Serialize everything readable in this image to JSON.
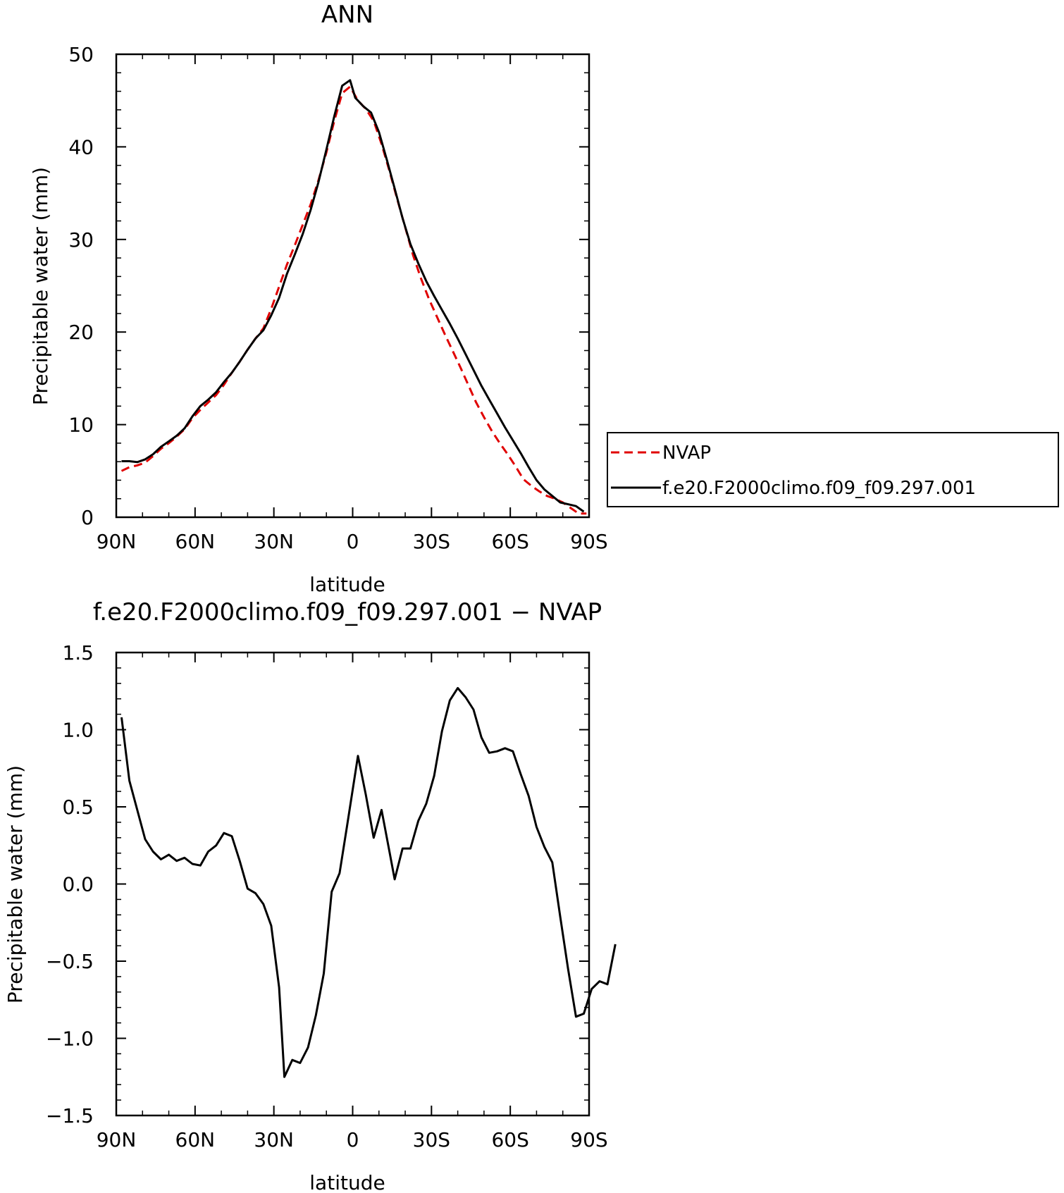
{
  "chart_data": [
    {
      "type": "line",
      "title": "ANN",
      "xlabel": "latitude",
      "ylabel": "Precipitable water (mm)",
      "xlim": [
        90,
        -90
      ],
      "ylim": [
        0,
        50
      ],
      "xticks": [
        {
          "value": 90,
          "label": "90N"
        },
        {
          "value": 60,
          "label": "60N"
        },
        {
          "value": 30,
          "label": "30N"
        },
        {
          "value": 0,
          "label": "0"
        },
        {
          "value": -30,
          "label": "30S"
        },
        {
          "value": -60,
          "label": "60S"
        },
        {
          "value": -90,
          "label": "90S"
        }
      ],
      "yticks": [
        {
          "value": 0,
          "label": "0"
        },
        {
          "value": 10,
          "label": "10"
        },
        {
          "value": 20,
          "label": "20"
        },
        {
          "value": 30,
          "label": "30"
        },
        {
          "value": 40,
          "label": "40"
        },
        {
          "value": 50,
          "label": "50"
        }
      ],
      "legend": {
        "placement": "right"
      },
      "series": [
        {
          "name": "NVAP",
          "color": "#e00000",
          "dash": true,
          "points": [
            [
              88,
              5.0
            ],
            [
              85,
              5.4
            ],
            [
              82,
              5.6
            ],
            [
              79,
              5.9
            ],
            [
              76,
              6.6
            ],
            [
              73,
              7.4
            ],
            [
              70,
              8.0
            ],
            [
              67,
              8.7
            ],
            [
              64,
              9.5
            ],
            [
              61,
              10.7
            ],
            [
              58,
              11.6
            ],
            [
              55,
              12.4
            ],
            [
              52,
              13.2
            ],
            [
              49,
              14.3
            ],
            [
              46,
              15.6
            ],
            [
              43,
              16.8
            ],
            [
              40,
              18.1
            ],
            [
              37,
              19.3
            ],
            [
              34,
              20.4
            ],
            [
              31,
              22.5
            ],
            [
              28,
              24.9
            ],
            [
              25,
              27.3
            ],
            [
              22,
              29.4
            ],
            [
              19,
              31.6
            ],
            [
              16,
              33.8
            ],
            [
              13,
              36.4
            ],
            [
              10,
              39.4
            ],
            [
              7,
              42.8
            ],
            [
              4,
              45.8
            ],
            [
              1,
              46.5
            ],
            [
              -2,
              45.0
            ],
            [
              -5,
              44.1
            ],
            [
              -8,
              42.8
            ],
            [
              -11,
              40.3
            ],
            [
              -14,
              37.4
            ],
            [
              -17,
              34.3
            ],
            [
              -20,
              31.3
            ],
            [
              -23,
              28.3
            ],
            [
              -26,
              25.8
            ],
            [
              -29,
              23.6
            ],
            [
              -32,
              21.7
            ],
            [
              -35,
              19.8
            ],
            [
              -38,
              18.0
            ],
            [
              -41,
              16.2
            ],
            [
              -44,
              14.3
            ],
            [
              -47,
              12.4
            ],
            [
              -50,
              10.8
            ],
            [
              -53,
              9.3
            ],
            [
              -56,
              8.0
            ],
            [
              -59,
              6.8
            ],
            [
              -62,
              5.5
            ],
            [
              -65,
              4.1
            ],
            [
              -68,
              3.4
            ],
            [
              -71,
              2.8
            ],
            [
              -74,
              2.3
            ],
            [
              -77,
              2.0
            ],
            [
              -80,
              1.6
            ],
            [
              -83,
              1.0
            ],
            [
              -86,
              0.4
            ],
            [
              -89,
              0.4
            ]
          ]
        },
        {
          "name": "f.e20.F2000climo.f09_f09.297.001",
          "color": "#000000",
          "dash": false,
          "points": [
            [
              88,
              6.05
            ],
            [
              85,
              6.05
            ],
            [
              82,
              5.95
            ],
            [
              79,
              6.25
            ],
            [
              76,
              6.8
            ],
            [
              73,
              7.6
            ],
            [
              70,
              8.2
            ],
            [
              67,
              8.8
            ],
            [
              64,
              9.6
            ],
            [
              61,
              10.9
            ],
            [
              58,
              12.0
            ],
            [
              55,
              12.7
            ],
            [
              52,
              13.5
            ],
            [
              49,
              14.6
            ],
            [
              46,
              15.6
            ],
            [
              43,
              16.8
            ],
            [
              40,
              18.1
            ],
            [
              37,
              19.3
            ],
            [
              34,
              20.2
            ],
            [
              31,
              21.8
            ],
            [
              28,
              23.7
            ],
            [
              25,
              26.3
            ],
            [
              22,
              28.4
            ],
            [
              19,
              30.6
            ],
            [
              16,
              33.2
            ],
            [
              13,
              36.2
            ],
            [
              10,
              39.7
            ],
            [
              7,
              43.3
            ],
            [
              4,
              46.6
            ],
            [
              1,
              47.2
            ],
            [
              -1,
              45.3
            ],
            [
              -4,
              44.4
            ],
            [
              -7,
              43.7
            ],
            [
              -10,
              41.6
            ],
            [
              -13,
              38.6
            ],
            [
              -16,
              35.5
            ],
            [
              -19,
              32.3
            ],
            [
              -22,
              29.5
            ],
            [
              -25,
              27.4
            ],
            [
              -28,
              25.5
            ],
            [
              -31,
              23.9
            ],
            [
              -34,
              22.4
            ],
            [
              -37,
              20.9
            ],
            [
              -40,
              19.3
            ],
            [
              -43,
              17.6
            ],
            [
              -46,
              15.9
            ],
            [
              -49,
              14.2
            ],
            [
              -52,
              12.7
            ],
            [
              -55,
              11.2
            ],
            [
              -58,
              9.7
            ],
            [
              -61,
              8.3
            ],
            [
              -64,
              6.9
            ],
            [
              -67,
              5.4
            ],
            [
              -70,
              4.0
            ],
            [
              -73,
              3.0
            ],
            [
              -76,
              2.3
            ],
            [
              -79,
              1.6
            ],
            [
              -82,
              1.4
            ],
            [
              -85,
              1.2
            ],
            [
              -88,
              0.6
            ]
          ]
        }
      ]
    },
    {
      "type": "line",
      "title": "f.e20.F2000climo.f09_f09.297.001 − NVAP",
      "xlabel": "latitude",
      "ylabel": "Precipitable water (mm)",
      "xlim": [
        90,
        -90
      ],
      "ylim": [
        -1.5,
        1.5
      ],
      "xticks": [
        {
          "value": 90,
          "label": "90N"
        },
        {
          "value": 60,
          "label": "60N"
        },
        {
          "value": 30,
          "label": "30N"
        },
        {
          "value": 0,
          "label": "0"
        },
        {
          "value": -30,
          "label": "30S"
        },
        {
          "value": -60,
          "label": "60S"
        },
        {
          "value": -90,
          "label": "90S"
        }
      ],
      "yticks": [
        {
          "value": -1.5,
          "label": "−1.5"
        },
        {
          "value": -1.0,
          "label": "−1.0"
        },
        {
          "value": -0.5,
          "label": "−0.5"
        },
        {
          "value": 0.0,
          "label": "0.0"
        },
        {
          "value": 0.5,
          "label": "0.5"
        },
        {
          "value": 1.0,
          "label": "1.0"
        },
        {
          "value": 1.5,
          "label": "1.5"
        }
      ],
      "series": [
        {
          "color": "#000000",
          "dash": false,
          "points": [
            [
              88,
              1.08
            ],
            [
              85,
              0.67
            ],
            [
              82,
              0.48
            ],
            [
              79,
              0.29
            ],
            [
              76,
              0.21
            ],
            [
              73,
              0.16
            ],
            [
              70,
              0.19
            ],
            [
              67,
              0.15
            ],
            [
              64,
              0.17
            ],
            [
              61,
              0.13
            ],
            [
              58,
              0.12
            ],
            [
              55,
              0.21
            ],
            [
              52,
              0.25
            ],
            [
              49,
              0.33
            ],
            [
              46,
              0.31
            ],
            [
              43,
              0.15
            ],
            [
              40,
              -0.03
            ],
            [
              37,
              -0.06
            ],
            [
              34,
              -0.13
            ],
            [
              31,
              -0.27
            ],
            [
              28,
              -0.67
            ],
            [
              26,
              -1.25
            ],
            [
              23,
              -1.14
            ],
            [
              20,
              -1.16
            ],
            [
              17,
              -1.06
            ],
            [
              14,
              -0.85
            ],
            [
              11,
              -0.58
            ],
            [
              8,
              -0.05
            ],
            [
              5,
              0.07
            ],
            [
              2,
              0.39
            ],
            [
              -2,
              0.83
            ],
            [
              -5,
              0.58
            ],
            [
              -8,
              0.3
            ],
            [
              -11,
              0.48
            ],
            [
              -14,
              0.21
            ],
            [
              -16,
              0.03
            ],
            [
              -19,
              0.23
            ],
            [
              -22,
              0.23
            ],
            [
              -25,
              0.41
            ],
            [
              -28,
              0.52
            ],
            [
              -31,
              0.7
            ],
            [
              -34,
              0.99
            ],
            [
              -37,
              1.19
            ],
            [
              -40,
              1.27
            ],
            [
              -43,
              1.21
            ],
            [
              -46,
              1.13
            ],
            [
              -49,
              0.95
            ],
            [
              -52,
              0.85
            ],
            [
              -55,
              0.86
            ],
            [
              -58,
              0.88
            ],
            [
              -61,
              0.86
            ],
            [
              -64,
              0.71
            ],
            [
              -67,
              0.57
            ],
            [
              -70,
              0.37
            ],
            [
              -73,
              0.24
            ],
            [
              -76,
              0.14
            ],
            [
              -79,
              -0.21
            ],
            [
              -82,
              -0.55
            ],
            [
              -85,
              -0.86
            ],
            [
              -88,
              -0.84
            ],
            [
              -91,
              -0.68
            ],
            [
              -94,
              -0.63
            ],
            [
              -97,
              -0.65
            ],
            [
              -100,
              -0.39
            ]
          ]
        }
      ]
    }
  ]
}
